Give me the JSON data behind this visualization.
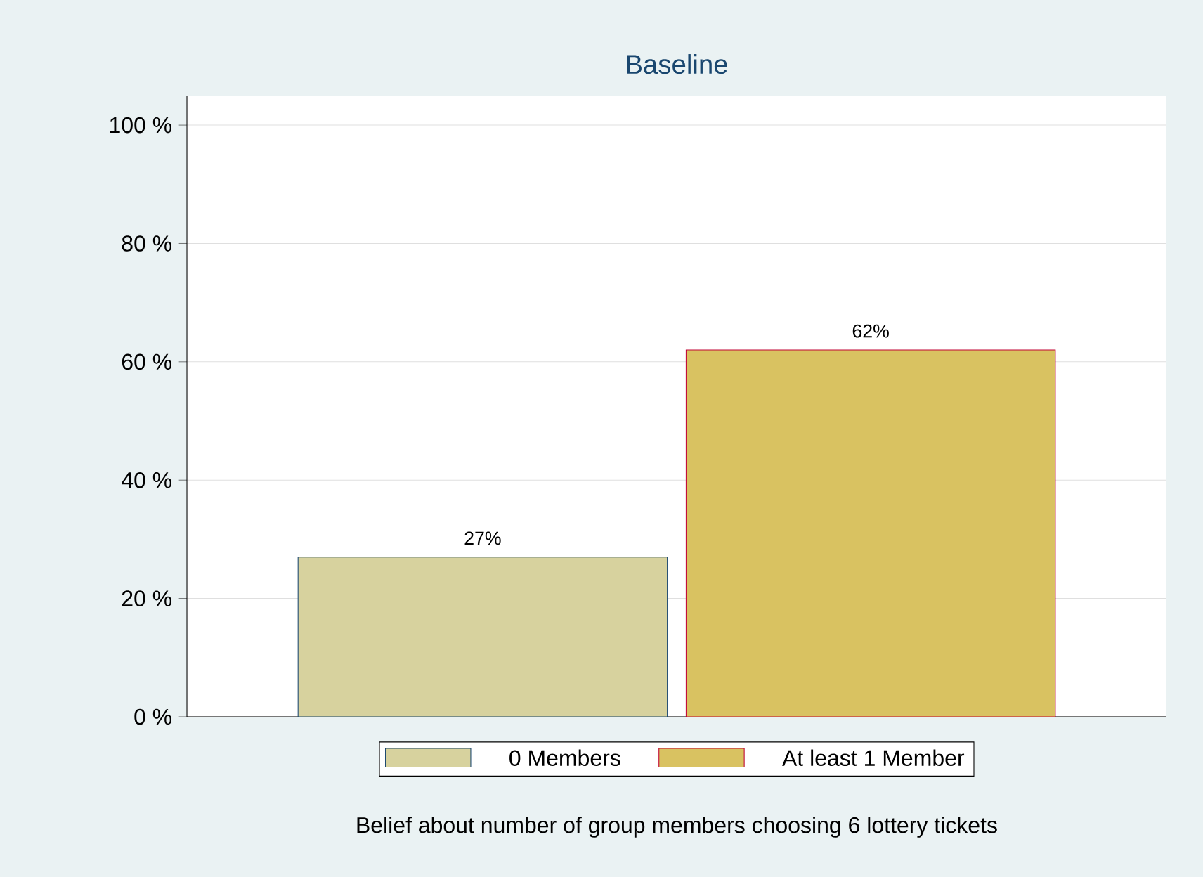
{
  "chart_data": {
    "type": "bar",
    "title": "Baseline",
    "xlabel": "Belief about number of group members choosing 6 lottery tickets",
    "categories": [
      null
    ],
    "series": [
      {
        "name": "0 Members",
        "color": "#d7d29e",
        "values": [
          27
        ],
        "value_labels": [
          "27%"
        ]
      },
      {
        "name": "At least 1 Member",
        "color": "#d9c261",
        "values": [
          62
        ],
        "value_labels": [
          "62%"
        ]
      }
    ],
    "ylim": [
      0,
      105
    ],
    "yticks": [
      {
        "value": 0,
        "label": "0 %"
      },
      {
        "value": 20,
        "label": "20 %"
      },
      {
        "value": 40,
        "label": "40 %"
      },
      {
        "value": 60,
        "label": "60 %"
      },
      {
        "value": 80,
        "label": "80 %"
      },
      {
        "value": 100,
        "label": "100 %"
      }
    ],
    "grid": "y",
    "legend": "bottom"
  }
}
